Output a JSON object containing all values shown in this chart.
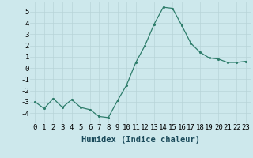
{
  "x": [
    0,
    1,
    2,
    3,
    4,
    5,
    6,
    7,
    8,
    9,
    10,
    11,
    12,
    13,
    14,
    15,
    16,
    17,
    18,
    19,
    20,
    21,
    22,
    23
  ],
  "y": [
    -3.0,
    -3.6,
    -2.7,
    -3.5,
    -2.8,
    -3.5,
    -3.7,
    -4.3,
    -4.4,
    -2.9,
    -1.5,
    0.5,
    2.0,
    3.9,
    5.4,
    5.3,
    3.8,
    2.2,
    1.4,
    0.9,
    0.8,
    0.5,
    0.5,
    0.6
  ],
  "xlabel": "Humidex (Indice chaleur)",
  "xlim": [
    -0.5,
    23.5
  ],
  "ylim": [
    -4.9,
    5.9
  ],
  "yticks": [
    -4,
    -3,
    -2,
    -1,
    0,
    1,
    2,
    3,
    4,
    5
  ],
  "xticks": [
    0,
    1,
    2,
    3,
    4,
    5,
    6,
    7,
    8,
    9,
    10,
    11,
    12,
    13,
    14,
    15,
    16,
    17,
    18,
    19,
    20,
    21,
    22,
    23
  ],
  "line_color": "#2e7d6b",
  "marker_color": "#2e7d6b",
  "bg_color": "#cde8ec",
  "grid_color": "#b8d4d8",
  "fig_bg": "#cde8ec",
  "xlabel_fontsize": 7.5,
  "tick_fontsize": 6.5
}
